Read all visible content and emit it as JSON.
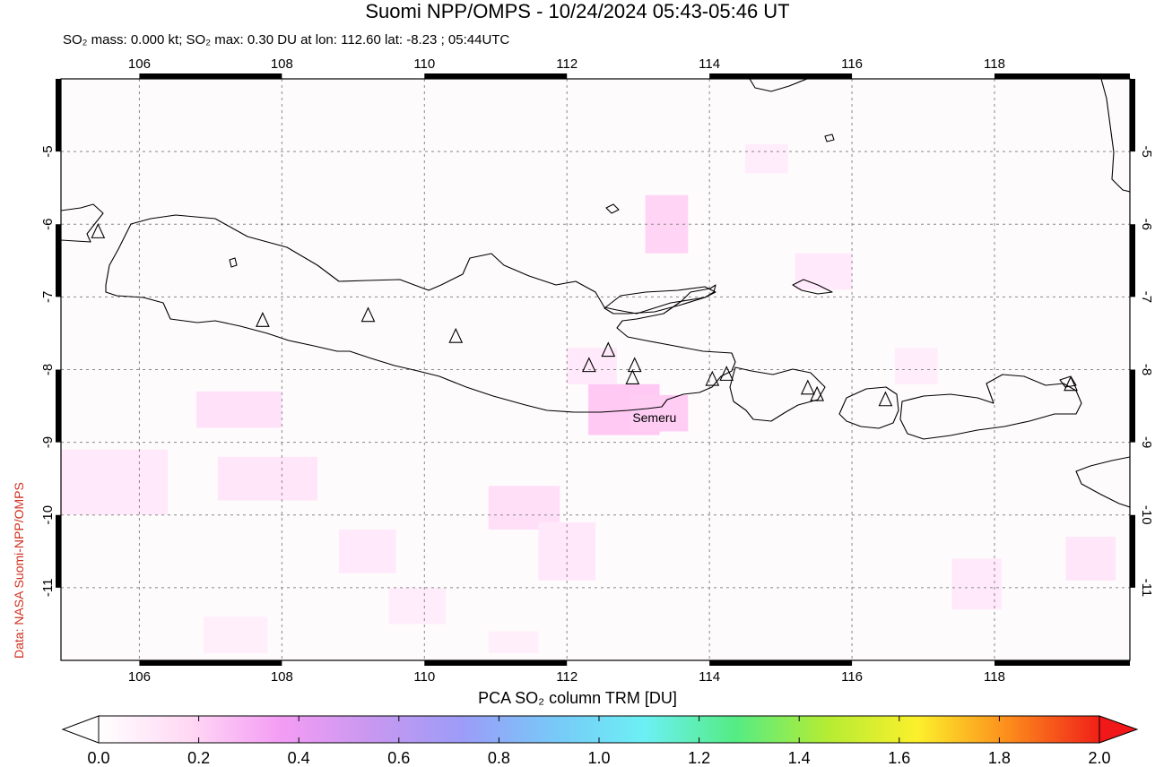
{
  "header": {
    "title": "Suomi NPP/OMPS - 10/24/2024 05:43-05:46 UT",
    "subtitle": "SO₂ mass: 0.000 kt; SO₂ max: 0.30 DU at lon: 112.60 lat: -8.23 ; 05:44UTC"
  },
  "credit": "Data: NASA Suomi-NPP/OMPS",
  "map": {
    "lon_range": [
      104.9,
      119.9
    ],
    "lat_range": [
      -12.0,
      -4.0
    ],
    "lon_ticks": [
      "106",
      "108",
      "110",
      "112",
      "114",
      "116",
      "118"
    ],
    "lat_ticks": [
      "-5",
      "-6",
      "-7",
      "-8",
      "-9",
      "-10",
      "-11"
    ],
    "grid": true,
    "label_text": "Semeru",
    "label_lonlat": [
      112.92,
      -8.72
    ],
    "volcanoes": [
      [
        105.42,
        -6.1
      ],
      [
        107.73,
        -7.32
      ],
      [
        109.21,
        -7.25
      ],
      [
        110.44,
        -7.54
      ],
      [
        112.31,
        -7.94
      ],
      [
        112.58,
        -7.73
      ],
      [
        112.95,
        -7.94
      ],
      [
        112.92,
        -8.11
      ],
      [
        114.04,
        -8.13
      ],
      [
        114.24,
        -8.06
      ],
      [
        115.38,
        -8.25
      ],
      [
        115.51,
        -8.34
      ],
      [
        116.47,
        -8.41
      ],
      [
        119.07,
        -8.2
      ]
    ],
    "so2_cells": [
      [
        112.3,
        -8.2,
        1.0,
        0.7,
        0.3
      ],
      [
        112.9,
        -8.35,
        0.8,
        0.5,
        0.28
      ],
      [
        113.1,
        -5.6,
        0.6,
        0.8,
        0.24
      ],
      [
        110.9,
        -9.6,
        1.0,
        0.6,
        0.18
      ],
      [
        106.8,
        -8.3,
        1.2,
        0.5,
        0.16
      ],
      [
        107.1,
        -9.2,
        1.4,
        0.6,
        0.14
      ],
      [
        111.6,
        -10.1,
        0.8,
        0.8,
        0.13
      ],
      [
        108.8,
        -10.2,
        0.8,
        0.6,
        0.12
      ],
      [
        104.9,
        -9.1,
        1.5,
        0.9,
        0.12
      ],
      [
        112.0,
        -7.7,
        0.7,
        0.5,
        0.12
      ],
      [
        115.2,
        -6.4,
        0.8,
        0.5,
        0.12
      ],
      [
        119.0,
        -10.3,
        0.7,
        0.6,
        0.14
      ],
      [
        117.4,
        -10.6,
        0.7,
        0.7,
        0.12
      ],
      [
        114.5,
        -4.9,
        0.6,
        0.4,
        0.1
      ],
      [
        116.6,
        -7.7,
        0.6,
        0.5,
        0.1
      ],
      [
        109.5,
        -11.0,
        0.8,
        0.5,
        0.1
      ],
      [
        106.9,
        -11.4,
        0.9,
        0.5,
        0.09
      ],
      [
        110.9,
        -11.6,
        0.7,
        0.3,
        0.09
      ]
    ]
  },
  "colorbar": {
    "title": "PCA SO₂ column TRM [DU]",
    "tick_labels": [
      "0.0",
      "0.2",
      "0.4",
      "0.6",
      "0.8",
      "1.0",
      "1.2",
      "1.4",
      "1.6",
      "1.8",
      "2.0"
    ],
    "colors": [
      "#ffffff",
      "#ffd8f4",
      "#f49cf4",
      "#c898f0",
      "#9c9cf8",
      "#78c8f8",
      "#6cf0f4",
      "#54ec84",
      "#b4ec34",
      "#fcf02c",
      "#fc8c1c",
      "#f02018"
    ]
  }
}
